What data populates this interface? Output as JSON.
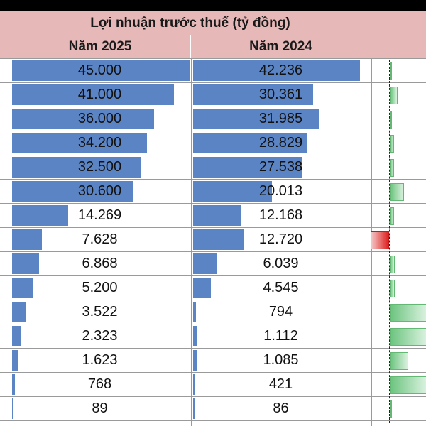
{
  "header": {
    "title": "Lợi nhuận trước thuế (tỷ đồng)",
    "col_2025": "Năm 2025",
    "col_2024": "Năm 2024"
  },
  "chart_data": {
    "type": "table",
    "title": "Lợi nhuận trước thuế (tỷ đồng)",
    "series": [
      {
        "name": "Năm 2025",
        "values": [
          45000,
          41000,
          36000,
          34200,
          32500,
          30600,
          14269,
          7628,
          6868,
          5200,
          3522,
          2323,
          1623,
          768,
          89
        ],
        "labels": [
          "45.000",
          "41.000",
          "36.000",
          "34.200",
          "32.500",
          "30.600",
          "14.269",
          "7.628",
          "6.868",
          "5.200",
          "3.522",
          "2.323",
          "1.623",
          "768",
          "89"
        ]
      },
      {
        "name": "Năm 2024",
        "values": [
          42236,
          30361,
          31985,
          28829,
          27538,
          20013,
          12168,
          12720,
          6039,
          4545,
          794,
          1112,
          1085,
          421,
          86
        ],
        "labels": [
          "42.236",
          "30.361",
          "31.985",
          "28.829",
          "27.538",
          "20.013",
          "12.168",
          "12.720",
          "6.039",
          "4.545",
          "794",
          "1.112",
          "1.085",
          "421",
          "86"
        ]
      }
    ],
    "change_bars": [
      0.02,
      0.22,
      0.06,
      0.12,
      0.12,
      0.38,
      0.12,
      -0.4,
      0.14,
      0.14,
      1.0,
      1.0,
      0.5,
      1.0,
      0.04
    ],
    "colors": {
      "bar": "#5b84c4",
      "positive": "#6cc47f",
      "negative": "#e02020",
      "header": "#e6b8b7"
    }
  }
}
